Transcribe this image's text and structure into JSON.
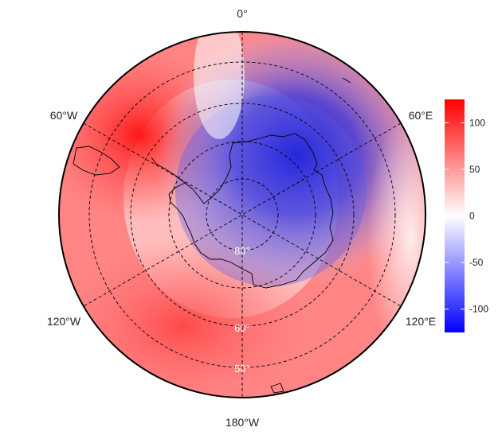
{
  "map": {
    "projection": "south-polar-stereographic",
    "meridian_labels": {
      "top": "0°",
      "upper_left": "60°W",
      "upper_right": "60°E",
      "lower_left": "120°W",
      "lower_right": "120°E",
      "bottom": "180°W"
    },
    "latitude_labels": [
      "80°",
      "60°",
      "50°"
    ],
    "field_pattern": "positive anomaly (red) over 90°W–180° sector and Antarctic Peninsula; negative anomaly (blue) over East Antarctica centered near 45°E"
  },
  "colorbar": {
    "ticks": [
      "100",
      "50",
      "0",
      "-50",
      "-100"
    ],
    "range": [
      -125,
      125
    ],
    "colors": {
      "high": "#ff0000",
      "mid": "#ffffff",
      "low": "#0000ff"
    }
  }
}
